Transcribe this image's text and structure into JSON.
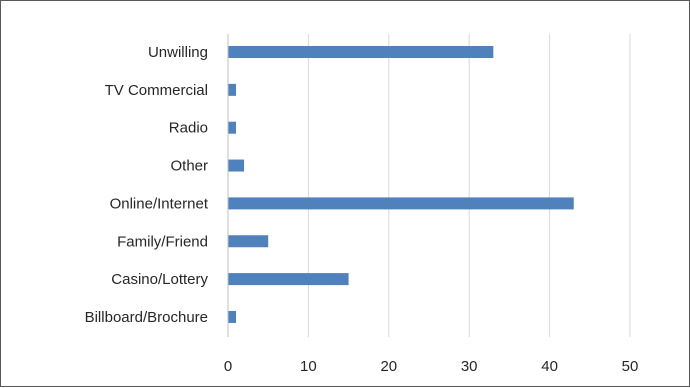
{
  "chart_data": {
    "type": "bar",
    "orientation": "horizontal",
    "categories": [
      "Unwilling",
      "TV Commercial",
      "Radio",
      "Other",
      "Online/Internet",
      "Family/Friend",
      "Casino/Lottery",
      "Billboard/Brochure"
    ],
    "values": [
      33,
      1,
      1,
      2,
      43,
      5,
      15,
      1
    ],
    "xlim": [
      0,
      50
    ],
    "x_ticks": [
      "0",
      "10",
      "20",
      "30",
      "40",
      "50"
    ],
    "grid": true,
    "legend": "none",
    "bar_color": "#4f81bd",
    "grid_color": "#d9d9d9",
    "axis_color": "#bfbfbf"
  }
}
